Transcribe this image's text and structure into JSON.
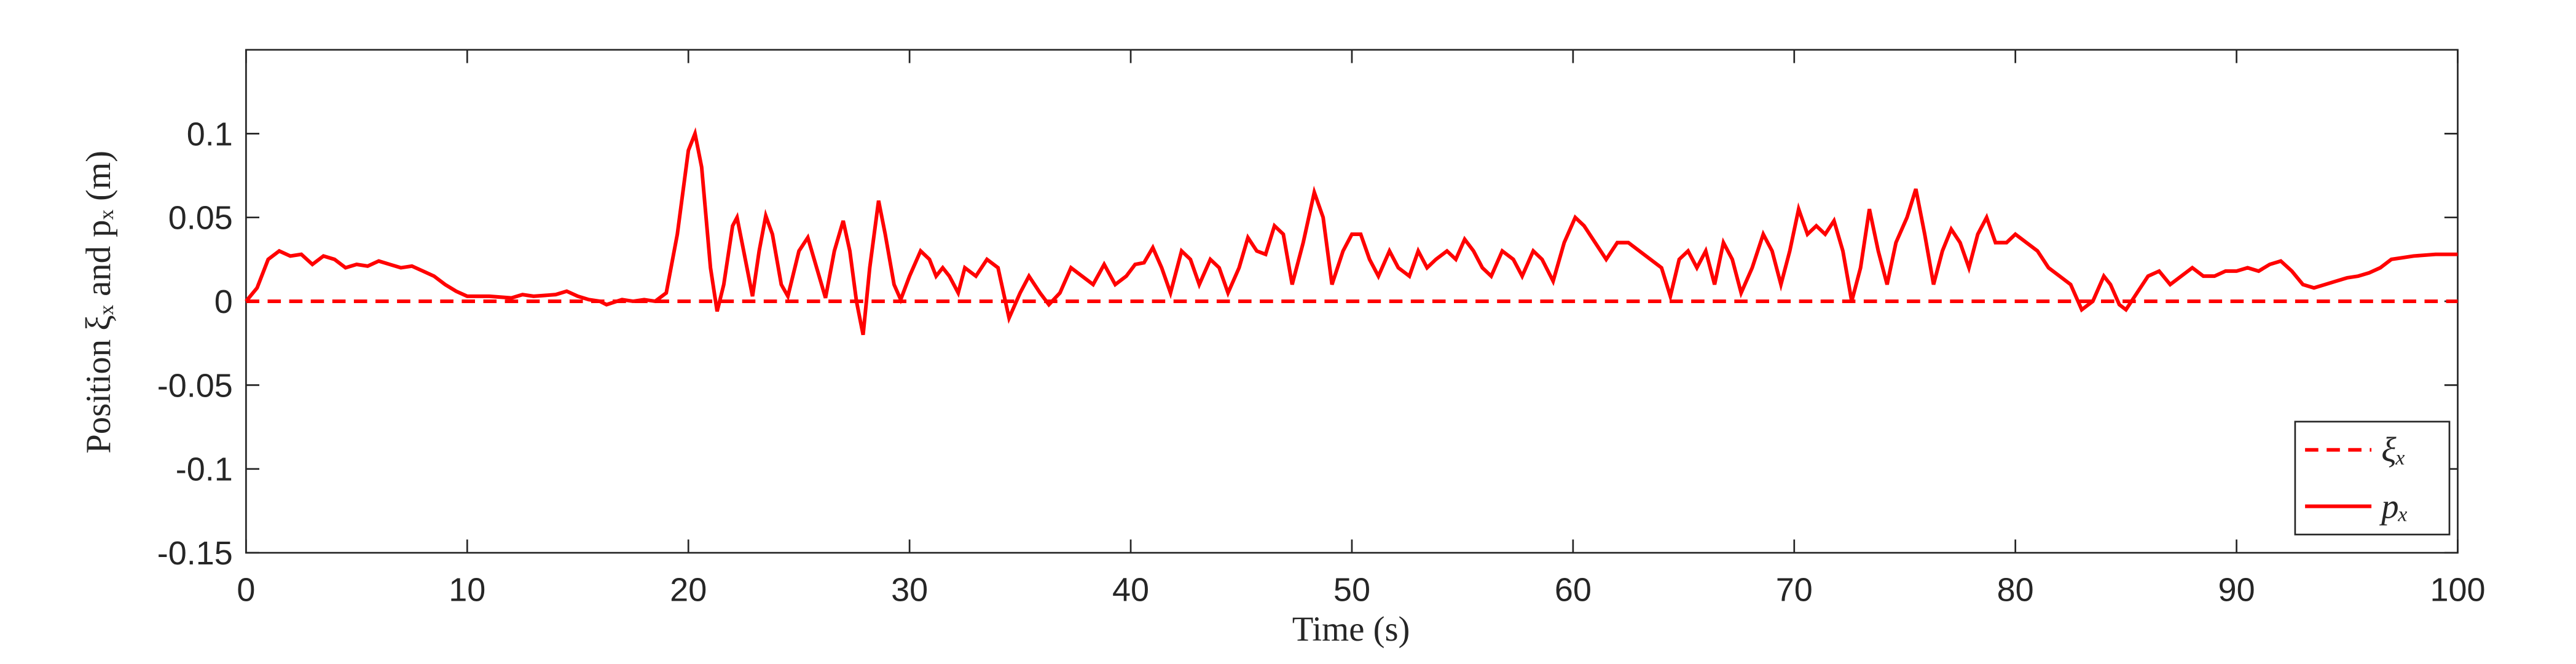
{
  "chart_data": {
    "type": "line",
    "xlabel": "Time (s)",
    "ylabel": "Position ξₓ and pₓ (m)",
    "xlim": [
      0,
      100
    ],
    "xticks": [
      0,
      10,
      20,
      30,
      40,
      50,
      60,
      70,
      80,
      90,
      100
    ],
    "ylim": [
      -0.15,
      0.15
    ],
    "yticks": [
      -0.15,
      -0.1,
      -0.05,
      0,
      0.05,
      0.1
    ],
    "grid": false,
    "legend": "lower right",
    "series": [
      {
        "name": "ξₓ",
        "color": "#ff0000",
        "dash": true,
        "x": [
          0,
          100
        ],
        "values": [
          0,
          0
        ]
      },
      {
        "name": "pₓ",
        "color": "#ff0000",
        "dash": false,
        "x": [
          0,
          0.5,
          1,
          1.5,
          2,
          2.5,
          3,
          3.5,
          4,
          4.5,
          5,
          5.5,
          6,
          6.5,
          7,
          7.5,
          8,
          8.5,
          9,
          9.5,
          10,
          11,
          12,
          12.5,
          13,
          14,
          14.5,
          15,
          15.5,
          16,
          16.3,
          17,
          17.5,
          18,
          18.5,
          19,
          19.5,
          20,
          20.3,
          20.6,
          21,
          21.3,
          21.6,
          22,
          22.2,
          22.5,
          22.9,
          23.2,
          23.5,
          23.8,
          24.2,
          24.5,
          25,
          25.4,
          25.8,
          26.2,
          26.6,
          27,
          27.3,
          27.6,
          27.9,
          28.2,
          28.6,
          28.9,
          29.3,
          29.6,
          30,
          30.5,
          30.9,
          31.2,
          31.5,
          31.8,
          32.2,
          32.5,
          33,
          33.5,
          34,
          34.5,
          35,
          35.4,
          35.9,
          36.3,
          36.8,
          37.3,
          37.8,
          38.3,
          38.8,
          39.3,
          39.8,
          40.2,
          40.6,
          41,
          41.4,
          41.8,
          42.3,
          42.7,
          43.1,
          43.6,
          44,
          44.4,
          44.9,
          45.3,
          45.7,
          46.1,
          46.5,
          46.9,
          47.3,
          47.8,
          48.3,
          48.7,
          49.1,
          49.6,
          50,
          50.4,
          50.8,
          51.2,
          51.7,
          52.1,
          52.6,
          53,
          53.4,
          53.8,
          54.3,
          54.7,
          55.1,
          55.5,
          55.9,
          56.3,
          56.8,
          57.3,
          57.7,
          58.2,
          58.6,
          59.1,
          59.6,
          60.1,
          60.5,
          61,
          61.5,
          62,
          62.5,
          63,
          63.5,
          64,
          64.4,
          64.8,
          65.2,
          65.6,
          66,
          66.4,
          66.8,
          67.2,
          67.6,
          68.1,
          68.6,
          69,
          69.4,
          69.8,
          70.2,
          70.6,
          71,
          71.4,
          71.8,
          72.2,
          72.6,
          73,
          73.4,
          73.8,
          74.2,
          74.6,
          75.1,
          75.5,
          75.9,
          76.3,
          76.7,
          77.1,
          77.5,
          77.9,
          78.3,
          78.7,
          79.1,
          79.6,
          80,
          80.5,
          81,
          81.5,
          82,
          82.5,
          83,
          83.5,
          84,
          84.3,
          84.7,
          85,
          85.5,
          86,
          86.5,
          87,
          87.5,
          88,
          88.5,
          89,
          89.5,
          90,
          90.5,
          91,
          91.5,
          92,
          92.5,
          93,
          93.5,
          94,
          94.5,
          95,
          95.5,
          96,
          96.5,
          97,
          97.5,
          98,
          99,
          100
        ],
        "values": [
          0,
          0.008,
          0.025,
          0.03,
          0.027,
          0.028,
          0.022,
          0.027,
          0.025,
          0.02,
          0.022,
          0.021,
          0.024,
          0.022,
          0.02,
          0.021,
          0.018,
          0.015,
          0.01,
          0.006,
          0.003,
          0.003,
          0.002,
          0.004,
          0.003,
          0.004,
          0.006,
          0.003,
          0.001,
          0,
          -0.002,
          0.001,
          0,
          0.001,
          0,
          0.005,
          0.04,
          0.09,
          0.1,
          0.08,
          0.02,
          -0.006,
          0.01,
          0.045,
          0.05,
          0.03,
          0.003,
          0.03,
          0.051,
          0.04,
          0.01,
          0.003,
          0.03,
          0.038,
          0.02,
          0.002,
          0.03,
          0.048,
          0.03,
          0,
          -0.02,
          0.02,
          0.06,
          0.04,
          0.01,
          0.001,
          0.015,
          0.03,
          0.025,
          0.015,
          0.02,
          0.015,
          0.005,
          0.02,
          0.015,
          0.025,
          0.02,
          -0.01,
          0.005,
          0.015,
          0.005,
          -0.002,
          0.005,
          0.02,
          0.015,
          0.01,
          0.022,
          0.01,
          0.015,
          0.022,
          0.023,
          0.032,
          0.02,
          0.005,
          0.03,
          0.025,
          0.01,
          0.025,
          0.02,
          0.005,
          0.02,
          0.038,
          0.03,
          0.028,
          0.045,
          0.04,
          0.01,
          0.035,
          0.065,
          0.05,
          0.01,
          0.03,
          0.04,
          0.04,
          0.025,
          0.015,
          0.03,
          0.02,
          0.015,
          0.03,
          0.02,
          0.025,
          0.03,
          0.025,
          0.037,
          0.03,
          0.02,
          0.015,
          0.03,
          0.025,
          0.015,
          0.03,
          0.025,
          0.012,
          0.035,
          0.05,
          0.045,
          0.035,
          0.025,
          0.035,
          0.035,
          0.03,
          0.025,
          0.02,
          0.003,
          0.025,
          0.03,
          0.02,
          0.03,
          0.01,
          0.035,
          0.025,
          0.005,
          0.02,
          0.04,
          0.03,
          0.01,
          0.03,
          0.055,
          0.04,
          0.045,
          0.04,
          0.048,
          0.03,
          0,
          0.02,
          0.055,
          0.03,
          0.01,
          0.035,
          0.05,
          0.067,
          0.04,
          0.01,
          0.03,
          0.043,
          0.035,
          0.02,
          0.04,
          0.05,
          0.035,
          0.035,
          0.04,
          0.035,
          0.03,
          0.02,
          0.015,
          0.01,
          -0.005,
          0,
          0.015,
          0.01,
          -0.002,
          -0.005,
          0.005,
          0.015,
          0.018,
          0.01,
          0.015,
          0.02,
          0.015,
          0.015,
          0.018,
          0.018,
          0.02,
          0.018,
          0.022,
          0.024,
          0.018,
          0.01,
          0.008,
          0.01,
          0.012,
          0.014,
          0.015,
          0.017,
          0.02,
          0.025,
          0.026,
          0.027,
          0.028,
          0.028
        ]
      }
    ]
  }
}
